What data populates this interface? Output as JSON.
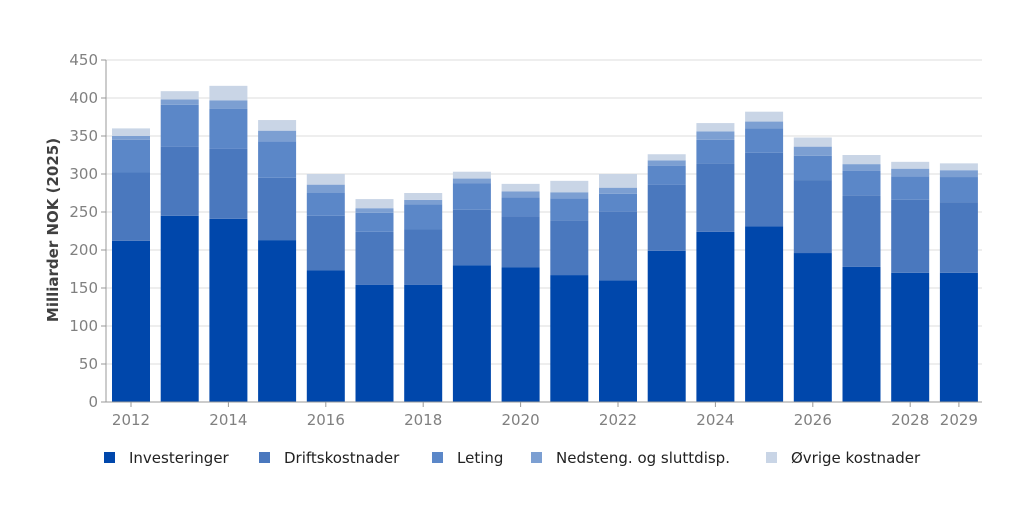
{
  "chart_data": {
    "type": "bar",
    "stacked": true,
    "ylabel": "Milliarder NOK (2025)",
    "xlabel": "",
    "ylim": [
      0,
      450
    ],
    "yticks": [
      0,
      50,
      100,
      150,
      200,
      250,
      300,
      350,
      400,
      450
    ],
    "grid": true,
    "legend_position": "bottom",
    "categories": [
      "2012",
      "2013",
      "2014",
      "2015",
      "2016",
      "2017",
      "2018",
      "2019",
      "2020",
      "2021",
      "2022",
      "2023",
      "2024",
      "2025",
      "2026",
      "2027",
      "2028",
      "2029"
    ],
    "xtick_labels": [
      "2012",
      "2014",
      "2016",
      "2018",
      "2020",
      "2022",
      "2024",
      "2026",
      "2028",
      "2029"
    ],
    "series": [
      {
        "name": "Investeringer",
        "color": "#0047ab",
        "values": [
          212,
          245,
          241,
          213,
          173,
          154,
          154,
          180,
          177,
          167,
          160,
          199,
          224,
          231,
          196,
          178,
          170,
          170
        ]
      },
      {
        "name": "Driftskostnader",
        "color": "#4a78be",
        "values": [
          90,
          91,
          92,
          82,
          72,
          70,
          73,
          73,
          67,
          72,
          91,
          87,
          90,
          97,
          96,
          94,
          96,
          93
        ]
      },
      {
        "name": "Leting",
        "color": "#5b87c8",
        "values": [
          43,
          55,
          53,
          48,
          30,
          25,
          33,
          35,
          25,
          29,
          23,
          25,
          31,
          32,
          32,
          32,
          31,
          33
        ]
      },
      {
        "name": "Nedsteng. og sluttdisp.",
        "color": "#7c9fd2",
        "values": [
          5,
          7,
          11,
          14,
          11,
          6,
          6,
          6,
          8,
          8,
          8,
          7,
          11,
          9,
          12,
          9,
          10,
          9
        ]
      },
      {
        "name": "Øvrige kostnader",
        "color": "#c9d5e6",
        "values": [
          10,
          11,
          19,
          14,
          14,
          12,
          9,
          9,
          10,
          15,
          18,
          8,
          11,
          13,
          12,
          12,
          9,
          9
        ]
      }
    ]
  }
}
